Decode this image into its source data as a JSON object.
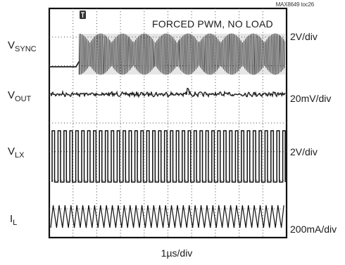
{
  "chart_data": {
    "type": "line",
    "tag": "MAX8649 toc26",
    "annotation": "FORCED PWM, NO LOAD",
    "x_scale": "1µs/div",
    "grid": true,
    "divisions": {
      "x": 10,
      "y": 8
    },
    "channels": [
      {
        "base": "V",
        "sub": "SYNC",
        "scale": "2V/div"
      },
      {
        "base": "V",
        "sub": "OUT",
        "scale": "20mV/div"
      },
      {
        "base": "V",
        "sub": "LX",
        "scale": "2V/div"
      },
      {
        "base": "I",
        "sub": "L",
        "scale": "200mA/div"
      }
    ]
  }
}
